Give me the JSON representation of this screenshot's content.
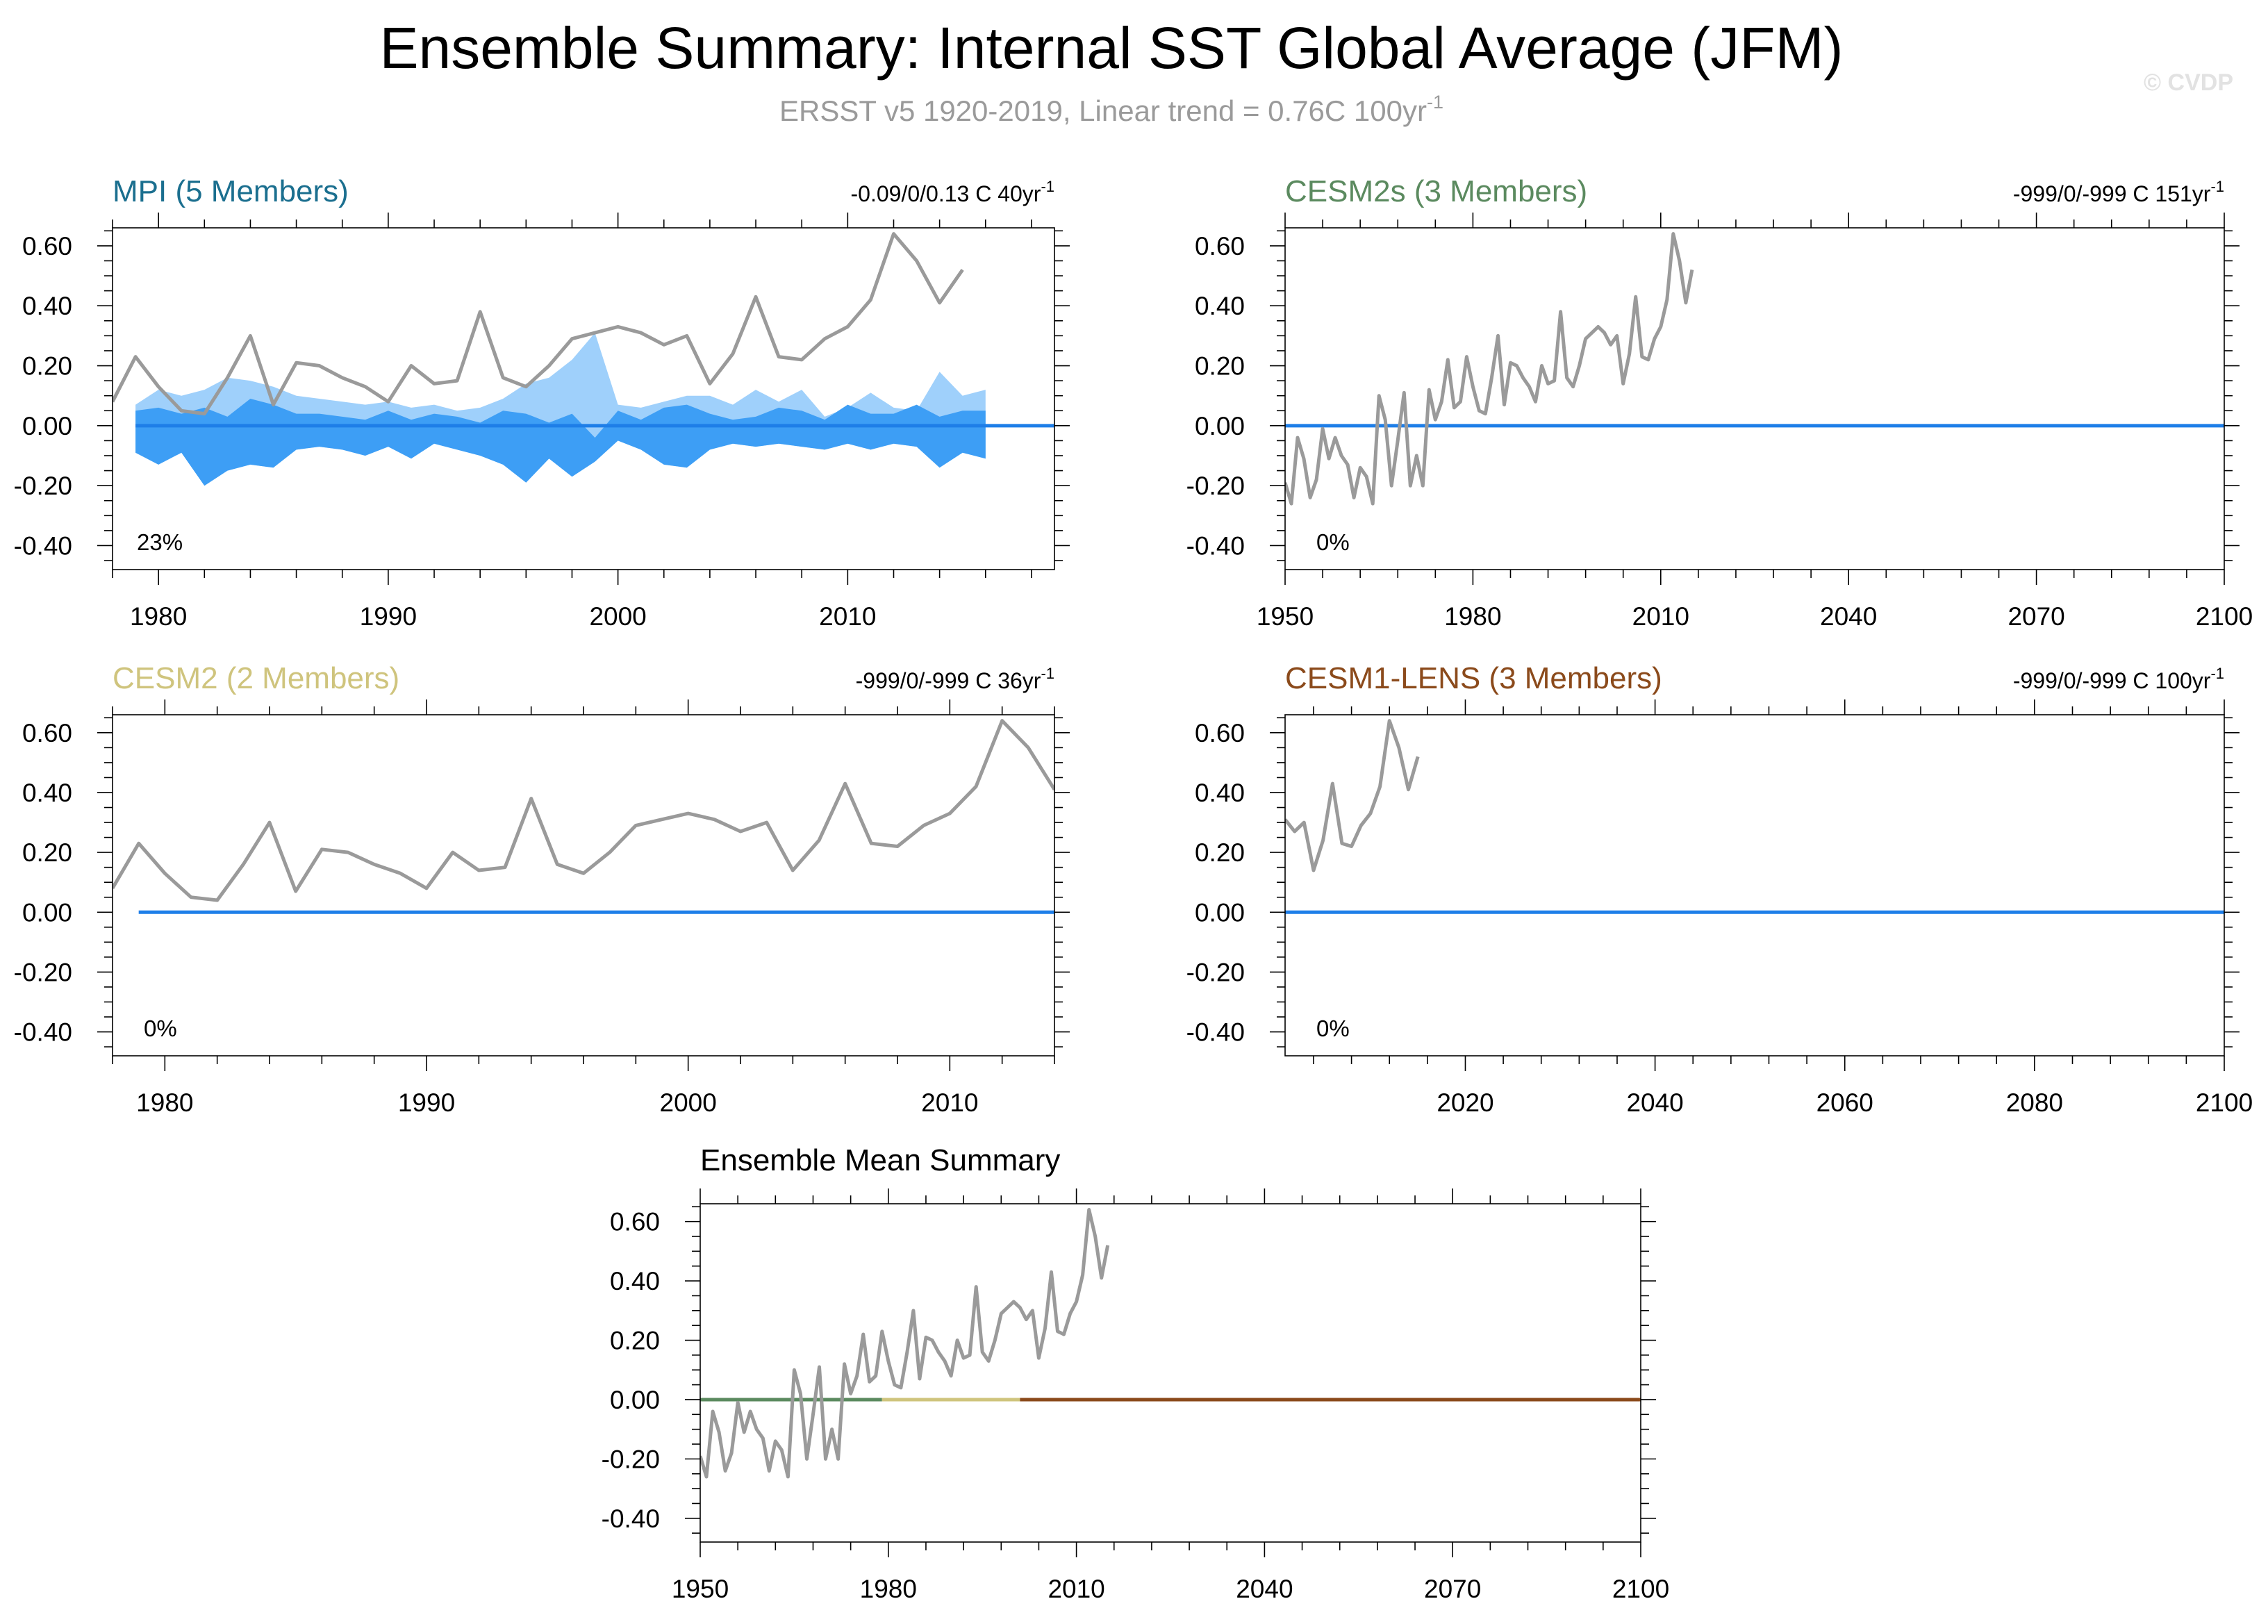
{
  "header": {
    "title": "Ensemble Summary: Internal SST Global Average (JFM)",
    "subtitle": "ERSST v5 1920-2019, Linear trend = 0.76C 100yr",
    "subtitle_sup": "-1",
    "watermark": "© CVDP"
  },
  "colors": {
    "obs": "#9a9a9a",
    "zero_line": "#1e7ee8",
    "spread_outer": "#9fd0fb",
    "spread_inner": "#3d9ef5",
    "mpi": "#1b6f8f",
    "cesm2s": "#5b8a5f",
    "cesm2": "#cfc47d",
    "cesm1": "#8b4a1b"
  },
  "obs_series": {
    "start_year": 1950,
    "values": [
      -0.19,
      -0.26,
      -0.04,
      -0.11,
      -0.24,
      -0.18,
      -0.01,
      -0.11,
      -0.04,
      -0.1,
      -0.13,
      -0.24,
      -0.14,
      -0.17,
      -0.26,
      0.1,
      0.02,
      -0.2,
      -0.05,
      0.11,
      -0.2,
      -0.1,
      -0.2,
      0.12,
      0.02,
      0.08,
      0.22,
      0.06,
      0.08,
      0.23,
      0.13,
      0.05,
      0.04,
      0.16,
      0.3,
      0.07,
      0.21,
      0.2,
      0.16,
      0.13,
      0.08,
      0.2,
      0.14,
      0.15,
      0.38,
      0.16,
      0.13,
      0.2,
      0.29,
      0.31,
      0.33,
      0.31,
      0.27,
      0.3,
      0.14,
      0.24,
      0.43,
      0.23,
      0.22,
      0.29,
      0.33,
      0.42,
      0.64,
      0.55,
      0.41,
      0.52
    ]
  },
  "chart_data": [
    {
      "id": "mpi",
      "type": "line",
      "title": "MPI (5 Members)",
      "note": "-0.09/0/0.13 C 40yr",
      "note_sup": "-1",
      "percent_label": "23%",
      "xlim": [
        1978,
        2019
      ],
      "ylim": [
        -0.48,
        0.66
      ],
      "xticks": [
        1980,
        1990,
        2000,
        2010
      ],
      "xtick_labels": [
        "1980",
        "1990",
        "2000",
        "2010"
      ],
      "yticks": [
        -0.4,
        -0.2,
        0.0,
        0.2,
        0.4,
        0.6
      ],
      "ytick_labels": [
        "-0.40",
        "-0.20",
        "0.00",
        "0.20",
        "0.40",
        "0.60"
      ],
      "obs_range": [
        1978,
        2019
      ],
      "spread": {
        "start_year": 1979,
        "outer_max": [
          0.07,
          0.12,
          0.1,
          0.12,
          0.16,
          0.15,
          0.13,
          0.1,
          0.09,
          0.08,
          0.07,
          0.08,
          0.06,
          0.07,
          0.05,
          0.06,
          0.09,
          0.14,
          0.16,
          0.22,
          0.31,
          0.07,
          0.06,
          0.08,
          0.1,
          0.1,
          0.07,
          0.12,
          0.08,
          0.12,
          0.03,
          0.06,
          0.11,
          0.06,
          0.05,
          0.18,
          0.1,
          0.12
        ],
        "inner_max": [
          0.05,
          0.06,
          0.04,
          0.06,
          0.03,
          0.09,
          0.07,
          0.04,
          0.04,
          0.03,
          0.02,
          0.05,
          0.02,
          0.04,
          0.03,
          0.01,
          0.05,
          0.04,
          0.01,
          0.04,
          -0.04,
          0.05,
          0.02,
          0.06,
          0.07,
          0.04,
          0.02,
          0.03,
          0.06,
          0.05,
          0.02,
          0.07,
          0.04,
          0.04,
          0.07,
          0.03,
          0.05,
          0.05
        ],
        "outer_min": [
          -0.09,
          -0.13,
          -0.09,
          -0.2,
          -0.15,
          -0.13,
          -0.14,
          -0.08,
          -0.07,
          -0.08,
          -0.1,
          -0.07,
          -0.11,
          -0.06,
          -0.08,
          -0.1,
          -0.13,
          -0.19,
          -0.11,
          -0.17,
          -0.12,
          -0.05,
          -0.08,
          -0.13,
          -0.14,
          -0.08,
          -0.06,
          -0.07,
          -0.06,
          -0.07,
          -0.08,
          -0.06,
          -0.08,
          -0.06,
          -0.07,
          -0.14,
          -0.09,
          -0.11
        ]
      },
      "mean": {
        "from": 1979,
        "to": 2019,
        "value": 0.0,
        "color_key": "zero_line"
      }
    },
    {
      "id": "cesm2s",
      "type": "line",
      "title": "CESM2s (3 Members)",
      "note": "-999/0/-999 C 151yr",
      "note_sup": "-1",
      "percent_label": "0%",
      "xlim": [
        1950,
        2100
      ],
      "ylim": [
        -0.48,
        0.66
      ],
      "xticks": [
        1950,
        1980,
        2010,
        2040,
        2070,
        2100
      ],
      "xtick_labels": [
        "1950",
        "1980",
        "2010",
        "2040",
        "2070",
        "2100"
      ],
      "yticks": [
        -0.4,
        -0.2,
        0.0,
        0.2,
        0.4,
        0.6
      ],
      "ytick_labels": [
        "-0.40",
        "-0.20",
        "0.00",
        "0.20",
        "0.40",
        "0.60"
      ],
      "obs_range": [
        1950,
        2019
      ],
      "mean": {
        "from": 1950,
        "to": 2100,
        "value": 0.0,
        "color_key": "zero_line"
      }
    },
    {
      "id": "cesm2",
      "type": "line",
      "title": "CESM2 (2 Members)",
      "note": "-999/0/-999 C 36yr",
      "note_sup": "-1",
      "percent_label": "0%",
      "xlim": [
        1978,
        2014
      ],
      "ylim": [
        -0.48,
        0.66
      ],
      "xticks": [
        1980,
        1990,
        2000,
        2010
      ],
      "xtick_labels": [
        "1980",
        "1990",
        "2000",
        "2010"
      ],
      "yticks": [
        -0.4,
        -0.2,
        0.0,
        0.2,
        0.4,
        0.6
      ],
      "ytick_labels": [
        "-0.40",
        "-0.20",
        "0.00",
        "0.20",
        "0.40",
        "0.60"
      ],
      "obs_range": [
        1978,
        2014
      ],
      "mean": {
        "from": 1979,
        "to": 2014,
        "value": 0.0,
        "color_key": "zero_line"
      }
    },
    {
      "id": "cesm1",
      "type": "line",
      "title": "CESM1-LENS (3 Members)",
      "note": "-999/0/-999 C 100yr",
      "note_sup": "-1",
      "percent_label": "0%",
      "xlim": [
        2001,
        2100
      ],
      "ylim": [
        -0.48,
        0.66
      ],
      "xticks": [
        2020,
        2040,
        2060,
        2080,
        2100
      ],
      "xtick_labels": [
        "2020",
        "2040",
        "2060",
        "2080",
        "2100"
      ],
      "yticks": [
        -0.4,
        -0.2,
        0.0,
        0.2,
        0.4,
        0.6
      ],
      "ytick_labels": [
        "-0.40",
        "-0.20",
        "0.00",
        "0.20",
        "0.40",
        "0.60"
      ],
      "obs_range": [
        2001,
        2019
      ],
      "mean": {
        "from": 2001,
        "to": 2100,
        "value": 0.0,
        "color_key": "zero_line"
      }
    },
    {
      "id": "ensmean",
      "type": "line",
      "title": "Ensemble Mean Summary",
      "xlim": [
        1950,
        2100
      ],
      "ylim": [
        -0.48,
        0.66
      ],
      "xticks": [
        1950,
        1980,
        2010,
        2040,
        2070,
        2100
      ],
      "xtick_labels": [
        "1950",
        "1980",
        "2010",
        "2040",
        "2070",
        "2100"
      ],
      "yticks": [
        -0.4,
        -0.2,
        0.0,
        0.2,
        0.4,
        0.6
      ],
      "ytick_labels": [
        "-0.40",
        "-0.20",
        "0.00",
        "0.20",
        "0.40",
        "0.60"
      ],
      "obs_range": [
        1950,
        2019
      ],
      "means": [
        {
          "name": "CESM2s",
          "from": 1950,
          "to": 1979,
          "value": 0.0,
          "color_key": "cesm2s"
        },
        {
          "name": "CESM2",
          "from": 1979,
          "to": 2001,
          "value": 0.0,
          "color_key": "cesm2"
        },
        {
          "name": "CESM1-LENS",
          "from": 2001,
          "to": 2100,
          "value": 0.0,
          "color_key": "cesm1"
        }
      ]
    }
  ]
}
